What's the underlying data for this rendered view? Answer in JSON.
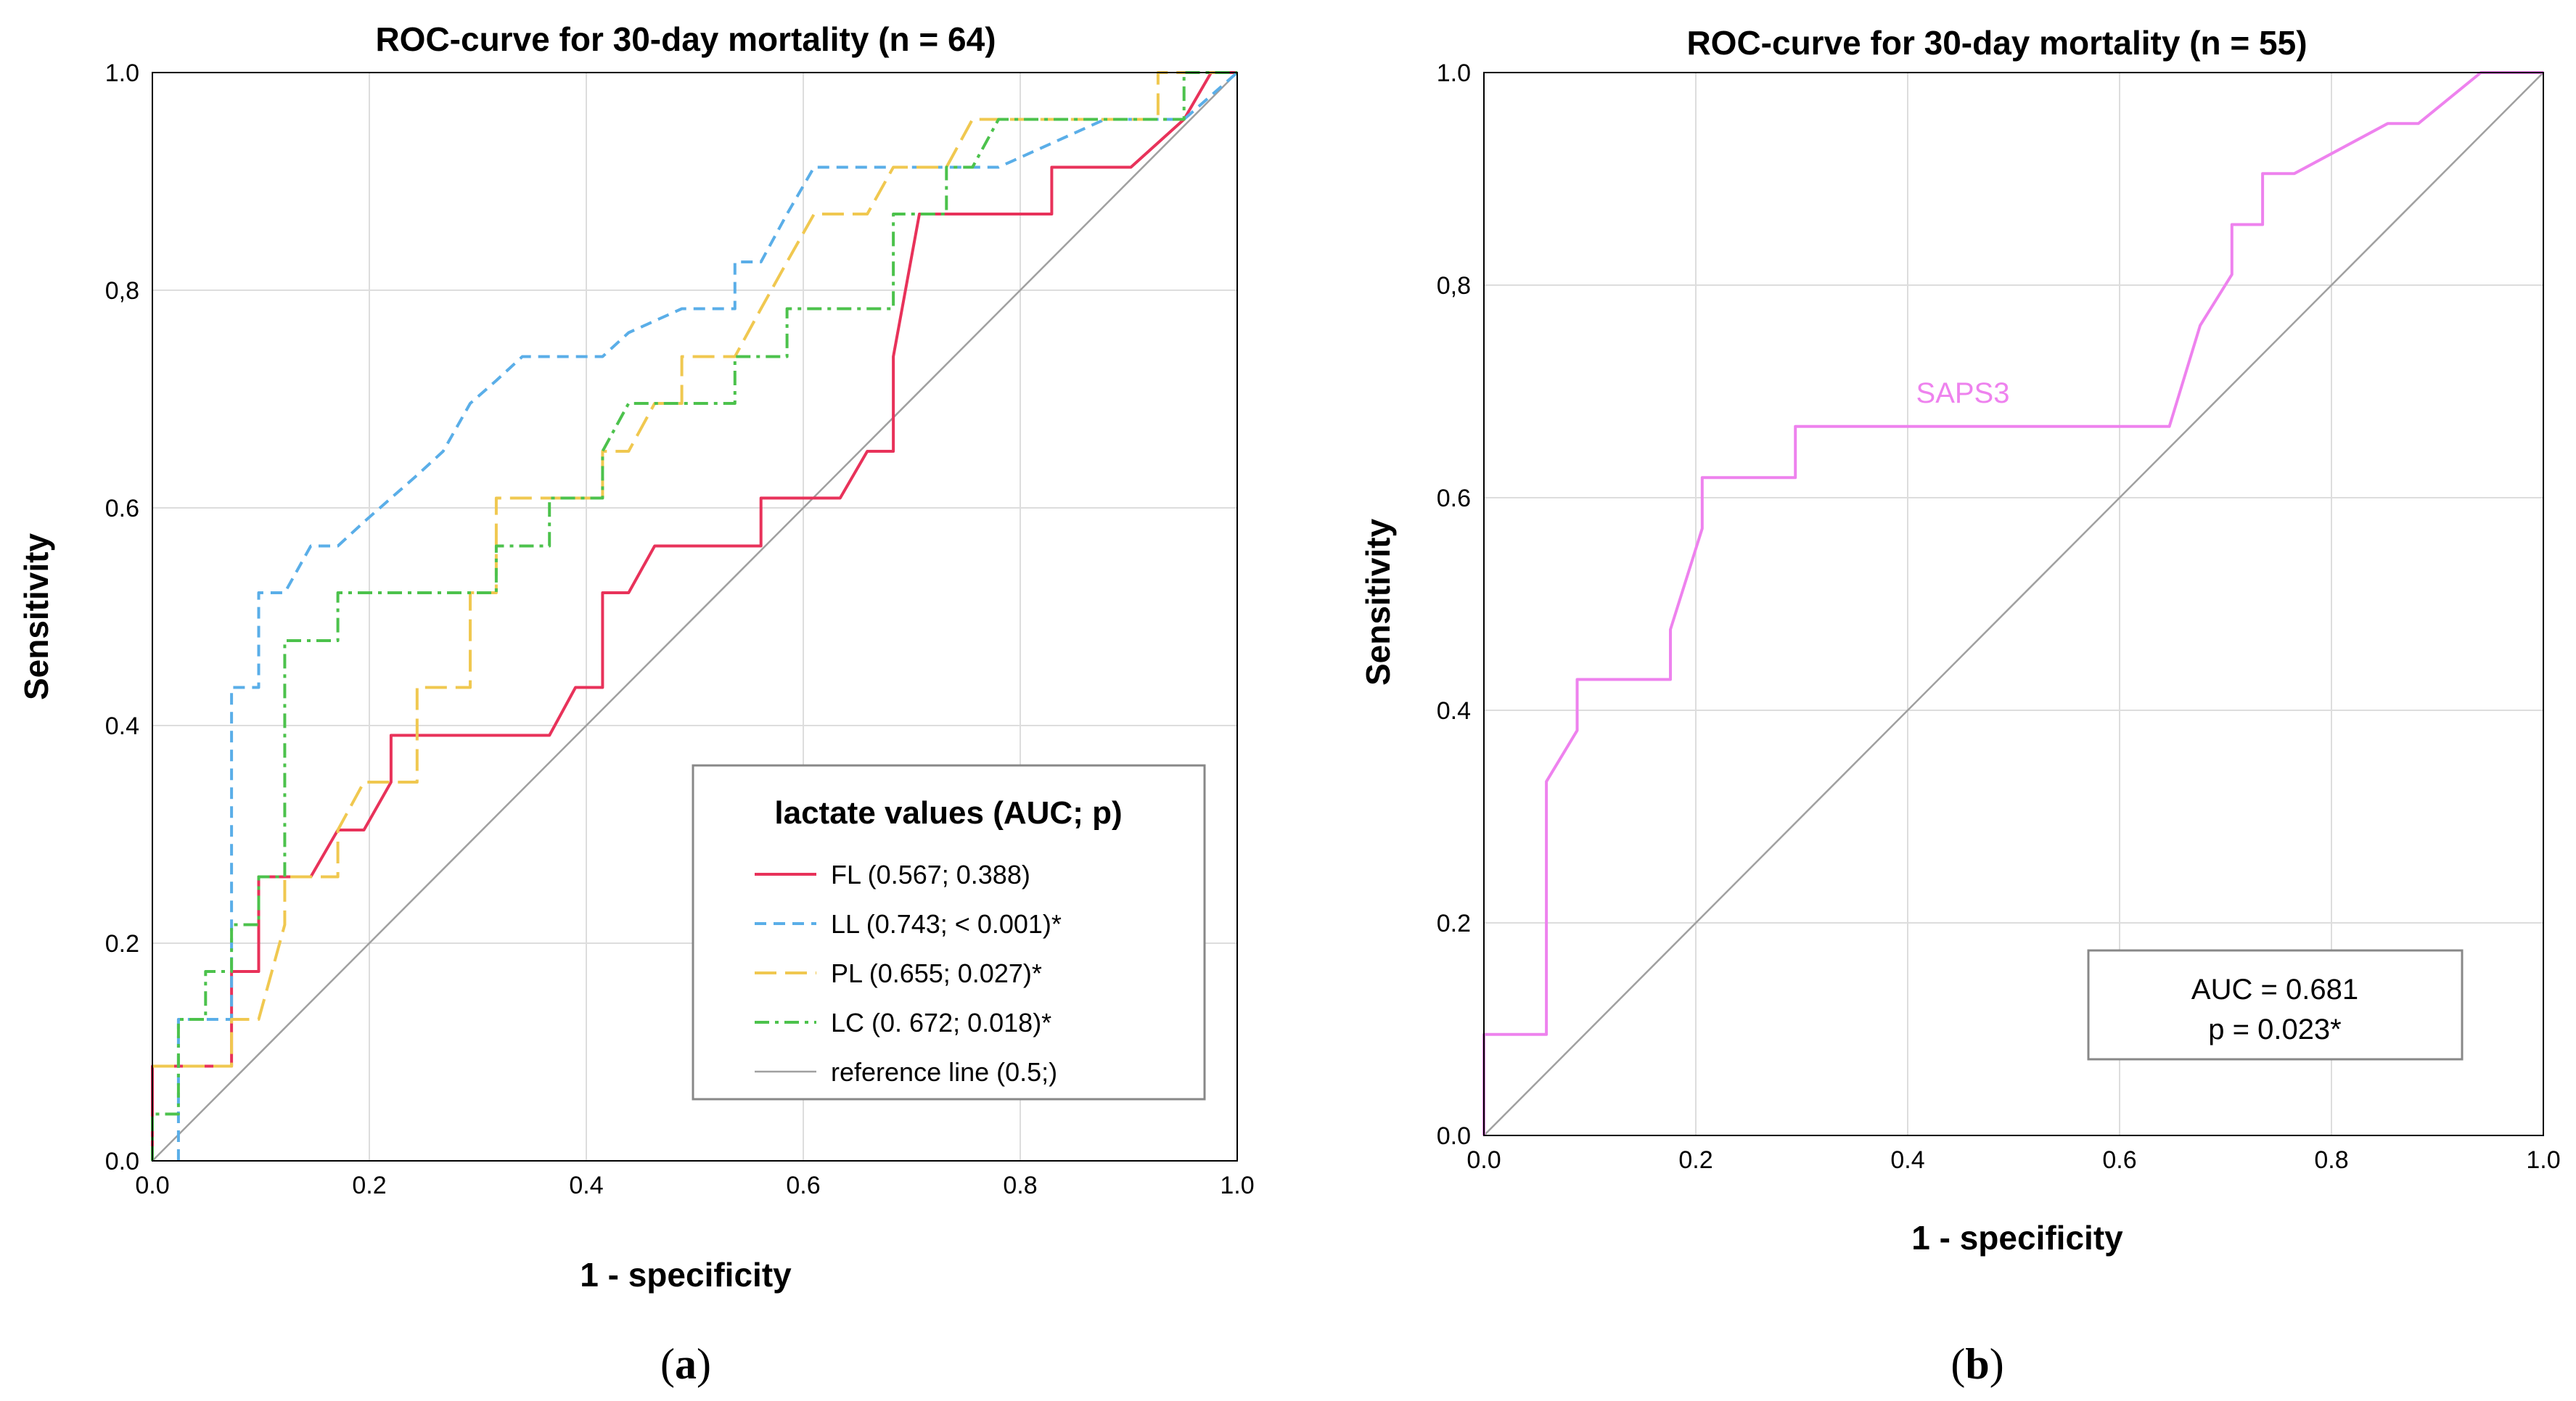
{
  "chart_data": [
    {
      "type": "line",
      "title": "ROC-curve for 30-day mortality (n = 64)",
      "xlabel": "1 - specificity",
      "ylabel": "Sensitivity",
      "xlim": [
        0,
        1
      ],
      "ylim": [
        0,
        1
      ],
      "x_ticks": [
        "0.0",
        "0.2",
        "0.4",
        "0.6",
        "0.8",
        "1.0"
      ],
      "y_ticks": [
        "0.0",
        "0.2",
        "0.4",
        "0.6",
        "0,8",
        "1.0"
      ],
      "grid": true,
      "legend": {
        "title": "lactate values (AUC; p)",
        "placement": "bottom-right"
      },
      "series": [
        {
          "name": "FL (0.567; 0.388)",
          "color": "#e8325a",
          "style": "solid",
          "points": [
            [
              0,
              0
            ],
            [
              0,
              0.087
            ],
            [
              0.073,
              0.087
            ],
            [
              0.073,
              0.174
            ],
            [
              0.098,
              0.174
            ],
            [
              0.098,
              0.261
            ],
            [
              0.146,
              0.261
            ],
            [
              0.171,
              0.304
            ],
            [
              0.195,
              0.304
            ],
            [
              0.22,
              0.348
            ],
            [
              0.22,
              0.391
            ],
            [
              0.366,
              0.391
            ],
            [
              0.39,
              0.435
            ],
            [
              0.415,
              0.435
            ],
            [
              0.415,
              0.522
            ],
            [
              0.439,
              0.522
            ],
            [
              0.463,
              0.565
            ],
            [
              0.561,
              0.565
            ],
            [
              0.561,
              0.609
            ],
            [
              0.634,
              0.609
            ],
            [
              0.659,
              0.652
            ],
            [
              0.683,
              0.652
            ],
            [
              0.683,
              0.739
            ],
            [
              0.707,
              0.87
            ],
            [
              0.829,
              0.87
            ],
            [
              0.829,
              0.913
            ],
            [
              0.902,
              0.913
            ],
            [
              0.951,
              0.957
            ],
            [
              0.976,
              1.0
            ],
            [
              1.0,
              1.0
            ]
          ]
        },
        {
          "name": "LL (0.743; < 0.001)*",
          "color": "#5aaee8",
          "style": "dashed",
          "points": [
            [
              0.024,
              0
            ],
            [
              0.024,
              0.13
            ],
            [
              0.073,
              0.13
            ],
            [
              0.073,
              0.435
            ],
            [
              0.098,
              0.435
            ],
            [
              0.098,
              0.522
            ],
            [
              0.122,
              0.522
            ],
            [
              0.146,
              0.565
            ],
            [
              0.171,
              0.565
            ],
            [
              0.195,
              0.587
            ],
            [
              0.22,
              0.609
            ],
            [
              0.244,
              0.63
            ],
            [
              0.268,
              0.652
            ],
            [
              0.293,
              0.696
            ],
            [
              0.317,
              0.717
            ],
            [
              0.341,
              0.739
            ],
            [
              0.415,
              0.739
            ],
            [
              0.439,
              0.761
            ],
            [
              0.488,
              0.783
            ],
            [
              0.537,
              0.783
            ],
            [
              0.537,
              0.826
            ],
            [
              0.561,
              0.826
            ],
            [
              0.585,
              0.87
            ],
            [
              0.61,
              0.913
            ],
            [
              0.683,
              0.913
            ],
            [
              0.78,
              0.913
            ],
            [
              0.878,
              0.957
            ],
            [
              0.951,
              0.957
            ],
            [
              1.0,
              1.0
            ]
          ]
        },
        {
          "name": "PL (0.655; 0.027)*",
          "color": "#f0c850",
          "style": "longdash",
          "points": [
            [
              0,
              0.087
            ],
            [
              0.073,
              0.087
            ],
            [
              0.073,
              0.13
            ],
            [
              0.098,
              0.13
            ],
            [
              0.122,
              0.217
            ],
            [
              0.122,
              0.261
            ],
            [
              0.171,
              0.261
            ],
            [
              0.171,
              0.304
            ],
            [
              0.195,
              0.348
            ],
            [
              0.244,
              0.348
            ],
            [
              0.244,
              0.435
            ],
            [
              0.293,
              0.435
            ],
            [
              0.293,
              0.522
            ],
            [
              0.317,
              0.522
            ],
            [
              0.317,
              0.609
            ],
            [
              0.415,
              0.609
            ],
            [
              0.415,
              0.652
            ],
            [
              0.439,
              0.652
            ],
            [
              0.463,
              0.696
            ],
            [
              0.488,
              0.696
            ],
            [
              0.488,
              0.739
            ],
            [
              0.537,
              0.739
            ],
            [
              0.561,
              0.783
            ],
            [
              0.585,
              0.826
            ],
            [
              0.61,
              0.87
            ],
            [
              0.659,
              0.87
            ],
            [
              0.683,
              0.913
            ],
            [
              0.732,
              0.913
            ],
            [
              0.756,
              0.957
            ],
            [
              0.927,
              0.957
            ],
            [
              0.927,
              1.0
            ],
            [
              1.0,
              1.0
            ]
          ]
        },
        {
          "name": "LC (0. 672; 0.018)*",
          "color": "#4cc24c",
          "style": "dashdot",
          "points": [
            [
              0,
              0
            ],
            [
              0,
              0.043
            ],
            [
              0.024,
              0.043
            ],
            [
              0.024,
              0.13
            ],
            [
              0.049,
              0.13
            ],
            [
              0.049,
              0.174
            ],
            [
              0.073,
              0.174
            ],
            [
              0.073,
              0.217
            ],
            [
              0.098,
              0.217
            ],
            [
              0.098,
              0.261
            ],
            [
              0.122,
              0.261
            ],
            [
              0.122,
              0.478
            ],
            [
              0.171,
              0.478
            ],
            [
              0.171,
              0.522
            ],
            [
              0.317,
              0.522
            ],
            [
              0.317,
              0.565
            ],
            [
              0.366,
              0.565
            ],
            [
              0.366,
              0.609
            ],
            [
              0.415,
              0.609
            ],
            [
              0.415,
              0.652
            ],
            [
              0.439,
              0.696
            ],
            [
              0.537,
              0.696
            ],
            [
              0.537,
              0.739
            ],
            [
              0.585,
              0.739
            ],
            [
              0.585,
              0.783
            ],
            [
              0.683,
              0.783
            ],
            [
              0.683,
              0.87
            ],
            [
              0.732,
              0.87
            ],
            [
              0.732,
              0.913
            ],
            [
              0.756,
              0.913
            ],
            [
              0.78,
              0.957
            ],
            [
              0.951,
              0.957
            ],
            [
              0.951,
              1.0
            ],
            [
              1.0,
              1.0
            ]
          ]
        },
        {
          "name": "reference line (0.5;)",
          "color": "#a0a0a0",
          "style": "solid",
          "points": [
            [
              0,
              0
            ],
            [
              1,
              1
            ]
          ]
        }
      ],
      "panel_label": "a"
    },
    {
      "type": "line",
      "title": "ROC-curve for 30-day mortality (n = 55)",
      "xlabel": "1 - specificity",
      "ylabel": "Sensitivity",
      "xlim": [
        0,
        1
      ],
      "ylim": [
        0,
        1
      ],
      "x_ticks": [
        "0.0",
        "0.2",
        "0.4",
        "0.6",
        "0.8",
        "1.0"
      ],
      "y_ticks": [
        "0.0",
        "0.2",
        "0.4",
        "0.6",
        "0,8",
        "1.0"
      ],
      "grid": true,
      "series": [
        {
          "name": "SAPS3",
          "color": "#ee82ee",
          "style": "solid",
          "points": [
            [
              0,
              0
            ],
            [
              0,
              0.095
            ],
            [
              0.059,
              0.095
            ],
            [
              0.059,
              0.333
            ],
            [
              0.088,
              0.381
            ],
            [
              0.088,
              0.429
            ],
            [
              0.176,
              0.429
            ],
            [
              0.176,
              0.476
            ],
            [
              0.206,
              0.571
            ],
            [
              0.206,
              0.619
            ],
            [
              0.294,
              0.619
            ],
            [
              0.294,
              0.667
            ],
            [
              0.647,
              0.667
            ],
            [
              0.676,
              0.762
            ],
            [
              0.706,
              0.81
            ],
            [
              0.706,
              0.857
            ],
            [
              0.735,
              0.857
            ],
            [
              0.735,
              0.905
            ],
            [
              0.765,
              0.905
            ],
            [
              0.853,
              0.952
            ],
            [
              0.882,
              0.952
            ],
            [
              0.941,
              1.0
            ],
            [
              1.0,
              1.0
            ]
          ]
        },
        {
          "name": "",
          "color": "#a0a0a0",
          "style": "solid",
          "points": [
            [
              0,
              0
            ],
            [
              1,
              1
            ]
          ]
        }
      ],
      "annotation": {
        "auc": "AUC = 0.681",
        "p": "p = 0.023*"
      },
      "panel_label": "b"
    }
  ]
}
